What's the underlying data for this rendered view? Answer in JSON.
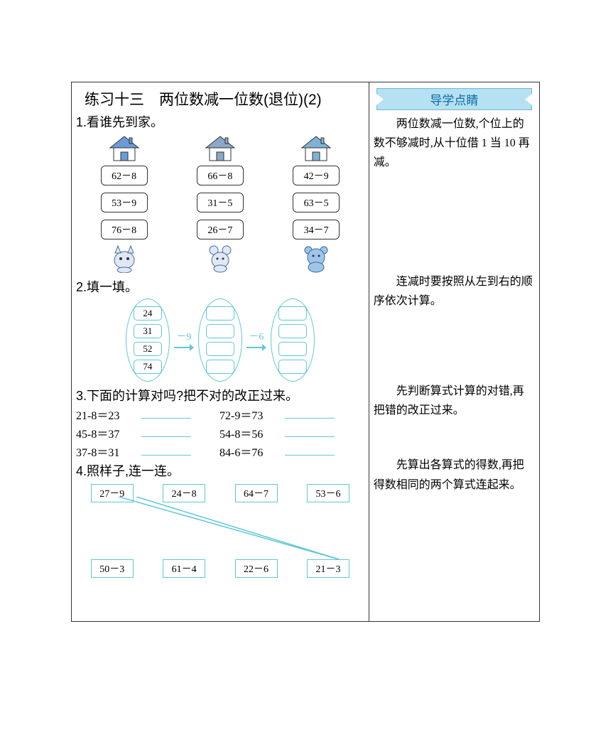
{
  "title": "练习十三　两位数减一位数(退位)(2)",
  "guide_header": "导学点睛",
  "q1": {
    "heading": "1.看谁先到家。",
    "cols": [
      {
        "eqs": [
          "62－8",
          "53－9",
          "76－8"
        ],
        "house_color": "#6a9bd8",
        "animal": "cat"
      },
      {
        "eqs": [
          "66－8",
          "31－5",
          "26－7"
        ],
        "house_color": "#8aa8c8",
        "animal": "mouse"
      },
      {
        "eqs": [
          "42－9",
          "63－5",
          "34－7"
        ],
        "house_color": "#7fb3d5",
        "animal": "bear"
      }
    ]
  },
  "side1": "　　两位数减一位数,个位上的数不够减时,从十位借 1 当 10 再减。",
  "q2": {
    "heading": "2.填一填。",
    "start": [
      "24",
      "31",
      "52",
      "74"
    ],
    "ops": [
      "－9",
      "－6"
    ]
  },
  "side2": "　　连减时要按照从左到右的顺序依次计算。",
  "q3": {
    "heading": "3.下面的计算对吗?把不对的改正过来。",
    "rows": [
      [
        "21-8＝23",
        "72-9＝73"
      ],
      [
        "45-8＝37",
        "54-8＝56"
      ],
      [
        "37-8＝31",
        "84-6＝76"
      ]
    ]
  },
  "side3": "　　先判断算式计算的对错,再把错的改正过来。",
  "q4": {
    "heading": "4.照样子,连一连。",
    "top": [
      "27－9",
      "24－8",
      "64－7",
      "53－6"
    ],
    "bot": [
      "50－3",
      "61－4",
      "22－6",
      "21－3"
    ]
  },
  "side4": "　　先算出各算式的得数,再把得数相同的两个算式连起来。",
  "colors": {
    "cyan": "#5fc7d6",
    "guide_bg": "#b5e1f2",
    "guide_border": "#6fb8d6",
    "guide_text": "#0a6aa5"
  }
}
